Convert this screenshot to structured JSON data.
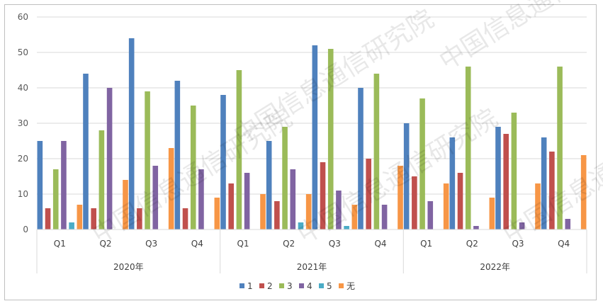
{
  "chart_data": {
    "type": "bar",
    "title": "",
    "xlabel": "",
    "ylabel": "",
    "ylim": [
      0,
      60
    ],
    "yticks": [
      0,
      10,
      20,
      30,
      40,
      50,
      60
    ],
    "grid": true,
    "legend_position": "bottom",
    "groups": [
      {
        "label": "2020年",
        "quarters": [
          "Q1",
          "Q2",
          "Q3",
          "Q4"
        ]
      },
      {
        "label": "2021年",
        "quarters": [
          "Q1",
          "Q2",
          "Q3",
          "Q4"
        ]
      },
      {
        "label": "2022年",
        "quarters": [
          "Q1",
          "Q2",
          "Q3",
          "Q4"
        ]
      }
    ],
    "series": [
      {
        "name": "1",
        "color": "#4f81bd",
        "values": [
          25,
          44,
          54,
          42,
          38,
          25,
          52,
          40,
          30,
          26,
          29,
          26
        ]
      },
      {
        "name": "2",
        "color": "#c0504d",
        "values": [
          6,
          6,
          6,
          6,
          13,
          8,
          19,
          20,
          15,
          16,
          27,
          22
        ]
      },
      {
        "name": "3",
        "color": "#9bbb59",
        "values": [
          17,
          28,
          39,
          35,
          45,
          29,
          51,
          44,
          37,
          46,
          33,
          46
        ]
      },
      {
        "name": "4",
        "color": "#8064a2",
        "values": [
          25,
          40,
          18,
          17,
          16,
          17,
          11,
          7,
          8,
          1,
          2,
          3
        ]
      },
      {
        "name": "5",
        "color": "#4bacc6",
        "values": [
          2,
          0,
          0,
          0,
          0,
          2,
          1,
          0,
          0,
          0,
          0,
          0
        ]
      },
      {
        "name": "无",
        "color": "#f79646",
        "values": [
          7,
          14,
          23,
          9,
          10,
          10,
          7,
          18,
          13,
          9,
          13,
          21
        ]
      }
    ]
  },
  "watermark": "中国信息通信研究院"
}
